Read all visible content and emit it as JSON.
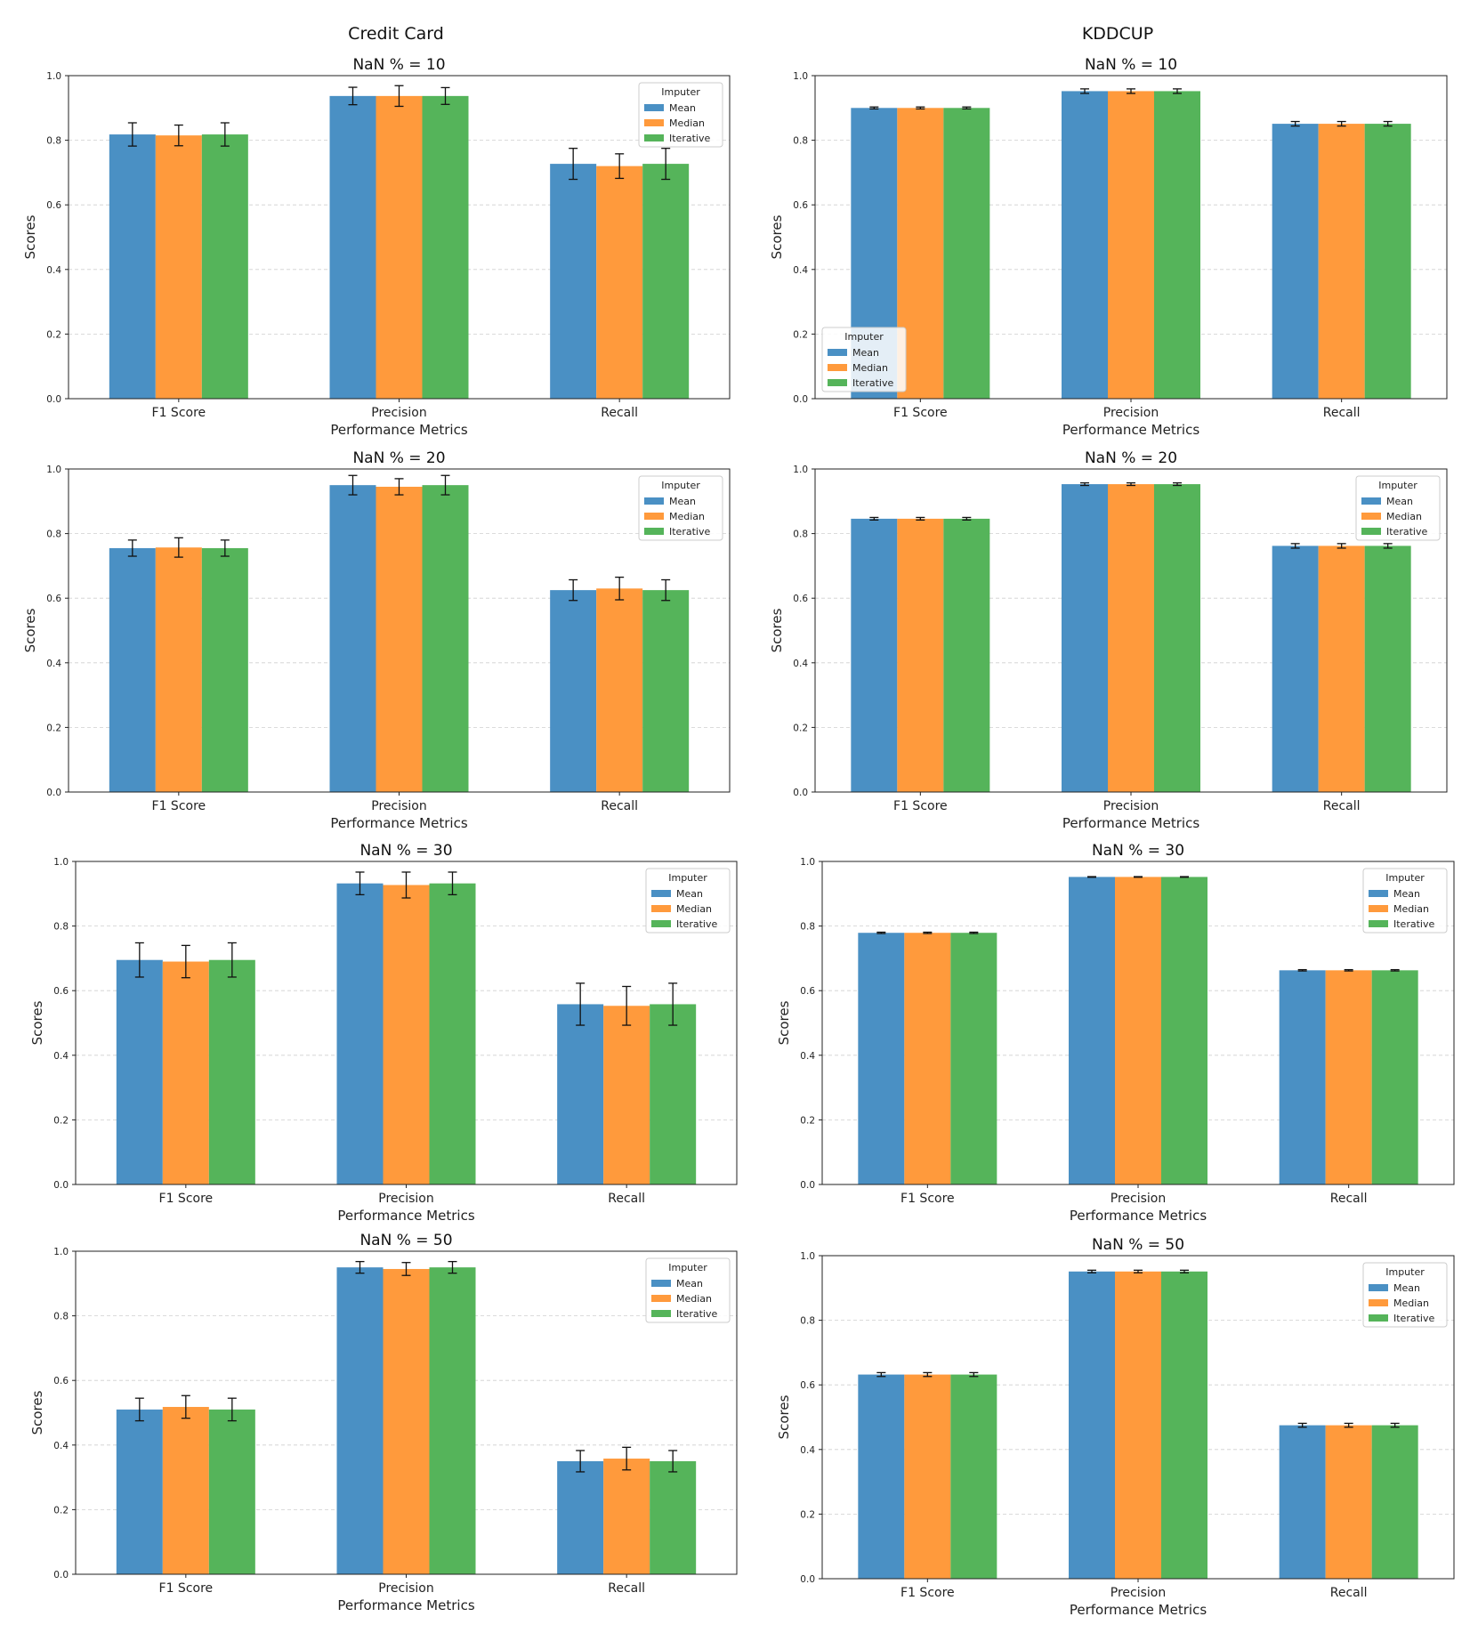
{
  "figure": {
    "left_title": "Credit Card",
    "right_title": "KDDCUP"
  },
  "colors": {
    "Mean": "#4a90c4",
    "Median": "#ff9a3c",
    "Iterative": "#55b45a"
  },
  "chart_data": [
    {
      "dataset": "Credit Card",
      "type": "bar",
      "title": "NaN % = 10",
      "xlabel": "Performance Metrics",
      "ylabel": "Scores",
      "ylim": [
        0,
        1
      ],
      "yticks": [
        "0.0",
        "0.2",
        "0.4",
        "0.6",
        "0.8",
        "1.0"
      ],
      "categories": [
        "F1 Score",
        "Precision",
        "Recall"
      ],
      "legend": {
        "title": "Imputer",
        "position": "top-right"
      },
      "series": [
        {
          "name": "Mean",
          "values": [
            0.818,
            0.937,
            0.727
          ],
          "errors": [
            0.036,
            0.027,
            0.048
          ]
        },
        {
          "name": "Median",
          "values": [
            0.815,
            0.937,
            0.72
          ],
          "errors": [
            0.032,
            0.032,
            0.038
          ]
        },
        {
          "name": "Iterative",
          "values": [
            0.818,
            0.937,
            0.727
          ],
          "errors": [
            0.036,
            0.026,
            0.048
          ]
        }
      ]
    },
    {
      "dataset": "KDDCUP",
      "type": "bar",
      "title": "NaN % = 10",
      "xlabel": "Performance Metrics",
      "ylabel": "Scores",
      "ylim": [
        0,
        1
      ],
      "yticks": [
        "0.0",
        "0.2",
        "0.4",
        "0.6",
        "0.8",
        "1.0"
      ],
      "categories": [
        "F1 Score",
        "Precision",
        "Recall"
      ],
      "legend": {
        "title": "Imputer",
        "position": "bottom-left"
      },
      "series": [
        {
          "name": "Mean",
          "values": [
            0.9,
            0.952,
            0.851
          ],
          "errors": [
            0.003,
            0.007,
            0.007
          ]
        },
        {
          "name": "Median",
          "values": [
            0.9,
            0.952,
            0.851
          ],
          "errors": [
            0.003,
            0.007,
            0.007
          ]
        },
        {
          "name": "Iterative",
          "values": [
            0.9,
            0.952,
            0.851
          ],
          "errors": [
            0.003,
            0.007,
            0.007
          ]
        }
      ]
    },
    {
      "dataset": "Credit Card",
      "type": "bar",
      "title": "NaN % = 20",
      "xlabel": "Performance Metrics",
      "ylabel": "Scores",
      "ylim": [
        0,
        1
      ],
      "yticks": [
        "0.0",
        "0.2",
        "0.4",
        "0.6",
        "0.8",
        "1.0"
      ],
      "categories": [
        "F1 Score",
        "Precision",
        "Recall"
      ],
      "legend": {
        "title": "Imputer",
        "position": "top-right"
      },
      "series": [
        {
          "name": "Mean",
          "values": [
            0.755,
            0.95,
            0.625
          ],
          "errors": [
            0.025,
            0.03,
            0.032
          ]
        },
        {
          "name": "Median",
          "values": [
            0.757,
            0.945,
            0.63
          ],
          "errors": [
            0.03,
            0.025,
            0.035
          ]
        },
        {
          "name": "Iterative",
          "values": [
            0.755,
            0.95,
            0.625
          ],
          "errors": [
            0.025,
            0.03,
            0.032
          ]
        }
      ]
    },
    {
      "dataset": "KDDCUP",
      "type": "bar",
      "title": "NaN % = 20",
      "xlabel": "Performance Metrics",
      "ylabel": "Scores",
      "ylim": [
        0,
        1
      ],
      "yticks": [
        "0.0",
        "0.2",
        "0.4",
        "0.6",
        "0.8",
        "1.0"
      ],
      "categories": [
        "F1 Score",
        "Precision",
        "Recall"
      ],
      "legend": {
        "title": "Imputer",
        "position": "top-right"
      },
      "series": [
        {
          "name": "Mean",
          "values": [
            0.846,
            0.953,
            0.762
          ],
          "errors": [
            0.004,
            0.004,
            0.007
          ]
        },
        {
          "name": "Median",
          "values": [
            0.846,
            0.953,
            0.762
          ],
          "errors": [
            0.004,
            0.004,
            0.007
          ]
        },
        {
          "name": "Iterative",
          "values": [
            0.846,
            0.953,
            0.762
          ],
          "errors": [
            0.004,
            0.004,
            0.007
          ]
        }
      ]
    },
    {
      "dataset": "Credit Card",
      "type": "bar",
      "title": "NaN % = 30",
      "xlabel": "Performance Metrics",
      "ylabel": "Scores",
      "ylim": [
        0,
        1
      ],
      "yticks": [
        "0.0",
        "0.2",
        "0.4",
        "0.6",
        "0.8",
        "1.0"
      ],
      "categories": [
        "F1 Score",
        "Precision",
        "Recall"
      ],
      "legend": {
        "title": "Imputer",
        "position": "top-right"
      },
      "series": [
        {
          "name": "Mean",
          "values": [
            0.695,
            0.932,
            0.558
          ],
          "errors": [
            0.053,
            0.035,
            0.065
          ]
        },
        {
          "name": "Median",
          "values": [
            0.69,
            0.927,
            0.553
          ],
          "errors": [
            0.05,
            0.04,
            0.06
          ]
        },
        {
          "name": "Iterative",
          "values": [
            0.695,
            0.932,
            0.558
          ],
          "errors": [
            0.053,
            0.035,
            0.065
          ]
        }
      ]
    },
    {
      "dataset": "KDDCUP",
      "type": "bar",
      "title": "NaN % = 30",
      "xlabel": "Performance Metrics",
      "ylabel": "Scores",
      "ylim": [
        0,
        1
      ],
      "yticks": [
        "0.0",
        "0.2",
        "0.4",
        "0.6",
        "0.8",
        "1.0"
      ],
      "categories": [
        "F1 Score",
        "Precision",
        "Recall"
      ],
      "legend": {
        "title": "Imputer",
        "position": "top-right"
      },
      "series": [
        {
          "name": "Mean",
          "values": [
            0.779,
            0.952,
            0.663
          ],
          "errors": [
            0.002,
            0.001,
            0.002
          ]
        },
        {
          "name": "Median",
          "values": [
            0.779,
            0.952,
            0.663
          ],
          "errors": [
            0.002,
            0.001,
            0.002
          ]
        },
        {
          "name": "Iterative",
          "values": [
            0.779,
            0.952,
            0.663
          ],
          "errors": [
            0.002,
            0.001,
            0.002
          ]
        }
      ]
    },
    {
      "dataset": "Credit Card",
      "type": "bar",
      "title": "NaN % = 50",
      "xlabel": "Performance Metrics",
      "ylabel": "Scores",
      "ylim": [
        0,
        1
      ],
      "yticks": [
        "0.0",
        "0.2",
        "0.4",
        "0.6",
        "0.8",
        "1.0"
      ],
      "categories": [
        "F1 Score",
        "Precision",
        "Recall"
      ],
      "legend": {
        "title": "Imputer",
        "position": "top-right"
      },
      "series": [
        {
          "name": "Mean",
          "values": [
            0.51,
            0.95,
            0.35
          ],
          "errors": [
            0.035,
            0.018,
            0.033
          ]
        },
        {
          "name": "Median",
          "values": [
            0.518,
            0.945,
            0.358
          ],
          "errors": [
            0.035,
            0.02,
            0.035
          ]
        },
        {
          "name": "Iterative",
          "values": [
            0.51,
            0.95,
            0.35
          ],
          "errors": [
            0.035,
            0.018,
            0.033
          ]
        }
      ]
    },
    {
      "dataset": "KDDCUP",
      "type": "bar",
      "title": "NaN % = 50",
      "xlabel": "Performance Metrics",
      "ylabel": "Scores",
      "ylim": [
        0,
        1
      ],
      "yticks": [
        "0.0",
        "0.2",
        "0.4",
        "0.6",
        "0.8",
        "1.0"
      ],
      "categories": [
        "F1 Score",
        "Precision",
        "Recall"
      ],
      "legend": {
        "title": "Imputer",
        "position": "top-right"
      },
      "series": [
        {
          "name": "Mean",
          "values": [
            0.632,
            0.951,
            0.475
          ],
          "errors": [
            0.006,
            0.004,
            0.006
          ]
        },
        {
          "name": "Median",
          "values": [
            0.632,
            0.951,
            0.475
          ],
          "errors": [
            0.006,
            0.004,
            0.006
          ]
        },
        {
          "name": "Iterative",
          "values": [
            0.632,
            0.951,
            0.475
          ],
          "errors": [
            0.006,
            0.004,
            0.006
          ]
        }
      ]
    }
  ]
}
